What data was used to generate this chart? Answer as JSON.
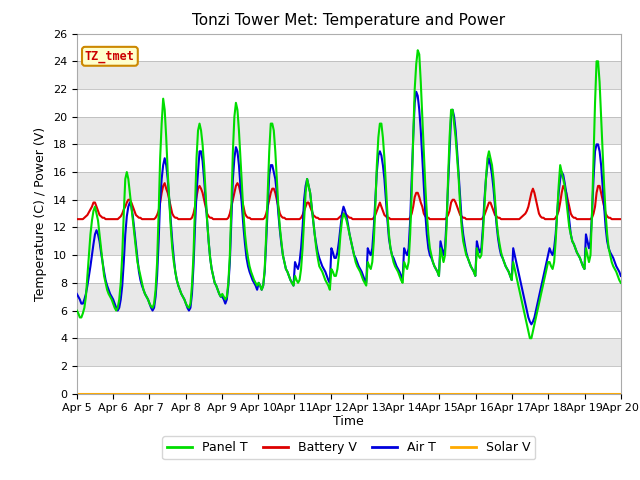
{
  "title": "Tonzi Tower Met: Temperature and Power",
  "ylabel": "Temperature (C) / Power (V)",
  "xlabel": "Time",
  "ylim": [
    0,
    26
  ],
  "annotation": "TZ_tmet",
  "legend_labels": [
    "Panel T",
    "Battery V",
    "Air T",
    "Solar V"
  ],
  "legend_colors": [
    "#00dd00",
    "#dd0000",
    "#0000dd",
    "#ffaa00"
  ],
  "xtick_labels": [
    "Apr 5",
    "Apr 6",
    "Apr 7",
    "Apr 8",
    "Apr 9",
    "Apr 10",
    "Apr 11",
    "Apr 12",
    "Apr 13",
    "Apr 14",
    "Apr 15",
    "Apr 16",
    "Apr 17",
    "Apr 18",
    "Apr 19",
    "Apr 20"
  ],
  "ytick_values": [
    0,
    2,
    4,
    6,
    8,
    10,
    12,
    14,
    16,
    18,
    20,
    22,
    24,
    26
  ],
  "band_colors": [
    "#ffffff",
    "#e0e0e0"
  ],
  "title_fontsize": 11,
  "axis_fontsize": 9,
  "tick_fontsize": 8
}
